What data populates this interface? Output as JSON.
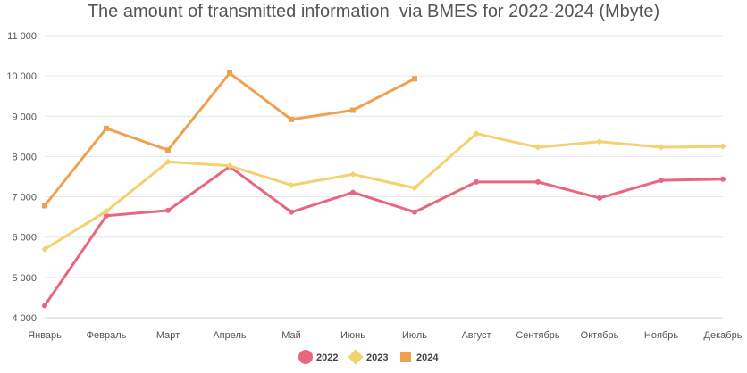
{
  "chart_data": {
    "type": "line",
    "title": "The amount of transmitted information  via BMES for 2022-2024 (Mbyte)",
    "xlabel": "",
    "ylabel": "",
    "categories": [
      "Январь",
      "Февраль",
      "Март",
      "Апрель",
      "Май",
      "Июнь",
      "Июль",
      "Август",
      "Сентябрь",
      "Октябрь",
      "Ноябрь",
      "Декабрь"
    ],
    "ylim": [
      4000,
      11000
    ],
    "yticks": [
      4000,
      5000,
      6000,
      7000,
      8000,
      9000,
      10000,
      11000
    ],
    "ytick_labels": [
      "4 000",
      "5 000",
      "6 000",
      "7 000",
      "8 000",
      "9 000",
      "10 000",
      "11 000"
    ],
    "grid": true,
    "legend_position": "bottom",
    "series": [
      {
        "name": "2022",
        "color": "#e8677f",
        "marker": "circle",
        "values": [
          4300,
          6530,
          6660,
          7750,
          6620,
          7110,
          6620,
          7370,
          7370,
          6970,
          7410,
          7440
        ]
      },
      {
        "name": "2023",
        "color": "#f5d06f",
        "marker": "diamond",
        "values": [
          5700,
          6640,
          7870,
          7770,
          7290,
          7560,
          7220,
          8570,
          8230,
          8370,
          8230,
          8250
        ]
      },
      {
        "name": "2024",
        "color": "#f0a150",
        "marker": "square",
        "values": [
          6780,
          8700,
          8160,
          10070,
          8920,
          9150,
          9930,
          null,
          null,
          null,
          null,
          null
        ]
      }
    ]
  }
}
